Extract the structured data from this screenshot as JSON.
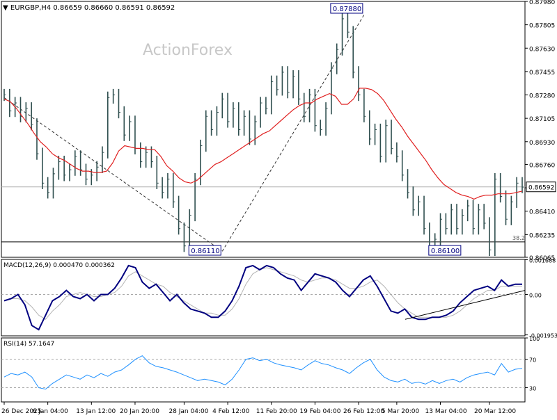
{
  "chart_data": [
    {
      "type": "line",
      "panel": "price",
      "symbol_header": "EURGBP,H4",
      "ohlc_header": "0.86659 0.86660 0.86591 0.86592",
      "watermark": "ActionForex",
      "ylim": [
        0.86065,
        0.8798
      ],
      "y_ticks": [
        "0.87980",
        "0.87805",
        "0.87630",
        "0.87455",
        "0.87280",
        "0.87105",
        "0.86930",
        "0.86760",
        "0.86585",
        "0.86410",
        "0.86235",
        "0.86065"
      ],
      "current_price_label": "0.86592",
      "current_price": 0.86592,
      "fib_level_label": "38.2",
      "fib_level": 0.8618,
      "swing_labels": [
        {
          "text": "0.86110",
          "x": "4 Feb 00:00",
          "y": 0.8611
        },
        {
          "text": "0.87880",
          "x": "26 Feb 08:00",
          "y": 0.8788
        },
        {
          "text": "0.86100",
          "x": "17 Mar 00:00",
          "y": 0.861
        }
      ],
      "trend_lines": [
        {
          "style": "dashed",
          "points": [
            [
              "26 Dec 2025",
              0.8726
            ],
            [
              "4 Feb 00:00",
              0.8611
            ]
          ]
        },
        {
          "style": "dashed",
          "points": [
            [
              "4 Feb 00:00",
              0.8611
            ],
            [
              "26 Feb 08:00",
              0.8788
            ]
          ]
        }
      ],
      "series": [
        {
          "style": "bars",
          "color": "#2f4f4f",
          "values": [
            0.8728,
            0.8716,
            0.8722,
            0.8712,
            0.8718,
            0.8706,
            0.8684,
            0.8662,
            0.8655,
            0.8669,
            0.8678,
            0.8668,
            0.8672,
            0.8682,
            0.8672,
            0.8665,
            0.8668,
            0.8674,
            0.8685,
            0.8726,
            0.8728,
            0.8715,
            0.8698,
            0.8708,
            0.8688,
            0.8678,
            0.8685,
            0.8678,
            0.8662,
            0.8655,
            0.8665,
            0.8648,
            0.8628,
            0.8615,
            0.8638,
            0.8665,
            0.869,
            0.8712,
            0.8702,
            0.8715,
            0.8725,
            0.8708,
            0.8718,
            0.8702,
            0.8712,
            0.8695,
            0.8708,
            0.8722,
            0.8718,
            0.8738,
            0.8732,
            0.8745,
            0.873,
            0.8742,
            0.8725,
            0.8712,
            0.8728,
            0.8705,
            0.8702,
            0.8718,
            0.8748,
            0.8762,
            0.8785,
            0.8775,
            0.8745,
            0.8728,
            0.8712,
            0.8695,
            0.8702,
            0.8682,
            0.8705,
            0.8688,
            0.8682,
            0.8668,
            0.8655,
            0.8642,
            0.8648,
            0.8628,
            0.8618,
            0.862,
            0.8635,
            0.8628,
            0.8642,
            0.8628,
            0.8638,
            0.8645,
            0.8628,
            0.8642,
            0.8632,
            0.8612,
            0.8665,
            0.8652,
            0.8635,
            0.8648,
            0.8662,
            0.8659
          ]
        },
        {
          "style": "line",
          "color": "#e02020",
          "values": [
            0.8725,
            0.8723,
            0.8718,
            0.8712,
            0.8706,
            0.8699,
            0.8693,
            0.8689,
            0.8684,
            0.8681,
            0.8679,
            0.8676,
            0.8673,
            0.8671,
            0.8671,
            0.867,
            0.867,
            0.8671,
            0.8677,
            0.8686,
            0.869,
            0.8689,
            0.8688,
            0.8688,
            0.8687,
            0.8687,
            0.8682,
            0.8675,
            0.8671,
            0.8666,
            0.8663,
            0.8662,
            0.8664,
            0.8668,
            0.8672,
            0.8676,
            0.8678,
            0.8681,
            0.8684,
            0.8687,
            0.869,
            0.8693,
            0.8696,
            0.8699,
            0.8701,
            0.8705,
            0.8709,
            0.8713,
            0.8717,
            0.872,
            0.8722,
            0.8722,
            0.8725,
            0.8727,
            0.8729,
            0.8727,
            0.8721,
            0.8721,
            0.8725,
            0.8733,
            0.8733,
            0.8732,
            0.8729,
            0.8724,
            0.8717,
            0.871,
            0.8704,
            0.8697,
            0.8691,
            0.8685,
            0.8679,
            0.8672,
            0.8666,
            0.8661,
            0.8658,
            0.8655,
            0.8653,
            0.8652,
            0.865,
            0.8652,
            0.8653,
            0.8653,
            0.8654,
            0.8654,
            0.8654,
            0.8655,
            0.8656
          ]
        }
      ]
    },
    {
      "type": "line",
      "panel": "macd",
      "header": "MACD(12,26,9) 0.000470 0.000362",
      "ylim": [
        -0.002,
        0.0017
      ],
      "y_ticks": [
        "0.001688",
        "0.00",
        "-0.001953"
      ],
      "series": [
        {
          "style": "line",
          "color": "#000080",
          "values": [
            -0.0003,
            -0.0002,
            0.0,
            -0.0005,
            -0.0015,
            -0.0017,
            -0.001,
            -0.0003,
            -0.0001,
            0.0002,
            -0.0001,
            -0.0002,
            0.0,
            -0.0003,
            0.0,
            0.0,
            0.0003,
            0.0008,
            0.0014,
            0.0013,
            0.0006,
            0.0003,
            0.0005,
            0.0001,
            -0.0003,
            0.0,
            -0.0004,
            -0.0007,
            -0.0008,
            -0.0009,
            -0.0011,
            -0.0011,
            -0.0008,
            -0.0003,
            0.0004,
            0.0013,
            0.0014,
            0.0012,
            0.0014,
            0.0013,
            0.001,
            0.0008,
            0.0007,
            0.0002,
            0.0006,
            0.001,
            0.0009,
            0.0008,
            0.0006,
            0.0002,
            -0.0001,
            0.0003,
            0.0007,
            0.0009,
            0.0004,
            -0.0002,
            -0.0008,
            -0.0009,
            -0.0007,
            -0.0011,
            -0.0012,
            -0.0012,
            -0.0011,
            -0.0011,
            -0.001,
            -0.0008,
            -0.0004,
            -0.0001,
            0.0002,
            0.0003,
            0.0004,
            0.0002,
            0.0007,
            0.0004,
            0.0005,
            0.0005
          ]
        },
        {
          "style": "line",
          "color": "#b4b4b4",
          "values": [
            -0.0003,
            -0.0002,
            -0.0002,
            -0.0003,
            -0.0006,
            -0.001,
            -0.0012,
            -0.0008,
            -0.0005,
            -0.0001,
            0.0,
            0.0001,
            0.0,
            -0.0001,
            -0.0001,
            0.0,
            0.0001,
            0.0004,
            0.0009,
            0.0011,
            0.0009,
            0.0007,
            0.0005,
            0.0004,
            0.0001,
            -0.0001,
            -0.0003,
            -0.0005,
            -0.0007,
            -0.0009,
            -0.0009,
            -0.001,
            -0.001,
            -0.0007,
            -0.0002,
            0.0005,
            0.001,
            0.0012,
            0.0013,
            0.0012,
            0.0011,
            0.001,
            0.0009,
            0.0007,
            0.0006,
            0.0007,
            0.0008,
            0.0008,
            0.0007,
            0.0005,
            0.0003,
            0.0003,
            0.0004,
            0.0006,
            0.0007,
            0.0004,
            0.0,
            -0.0004,
            -0.0007,
            -0.0009,
            -0.0011,
            -0.0011,
            -0.0011,
            -0.0011,
            -0.0011,
            -0.001,
            -0.0008,
            -0.0005,
            -0.0002,
            0.0,
            0.0002,
            0.0002,
            0.0004,
            0.0004,
            0.0004,
            0.0004
          ]
        }
      ],
      "trend_lines": [
        {
          "style": "solid",
          "points": [
            [
              "5 Mar 20:00",
              -0.0012
            ],
            [
              "20 Mar 12:00",
              0.0002
            ]
          ]
        }
      ]
    },
    {
      "type": "line",
      "panel": "rsi",
      "header": "RSI(14) 57.1647",
      "ylim": [
        10,
        100
      ],
      "y_ticks": [
        "100",
        "70",
        "30"
      ],
      "series": [
        {
          "style": "line",
          "color": "#1e90ff",
          "values": [
            45,
            50,
            48,
            52,
            45,
            30,
            28,
            36,
            42,
            48,
            45,
            42,
            48,
            44,
            50,
            46,
            52,
            55,
            62,
            70,
            75,
            65,
            60,
            58,
            55,
            52,
            48,
            44,
            40,
            42,
            40,
            38,
            34,
            42,
            55,
            70,
            72,
            68,
            70,
            65,
            62,
            60,
            58,
            55,
            62,
            68,
            64,
            62,
            58,
            55,
            50,
            58,
            65,
            70,
            55,
            45,
            40,
            38,
            42,
            36,
            38,
            35,
            40,
            36,
            40,
            42,
            38,
            44,
            48,
            50,
            52,
            48,
            64,
            52,
            56,
            57.1647
          ]
        }
      ]
    }
  ],
  "x_axis": {
    "ticks": [
      "26 Dec 2025",
      "6 Jan 04:00",
      "13 Jan 12:00",
      "20 Jan 20:00",
      "28 Jan 04:00",
      "4 Feb 12:00",
      "11 Feb 20:00",
      "19 Feb 04:00",
      "26 Feb 12:00",
      "5 Mar 20:00",
      "13 Mar 04:00",
      "20 Mar 12:00"
    ]
  },
  "colors": {
    "bars": "#2f4f4f",
    "moving_average": "#e02020",
    "macd_line": "#000080",
    "signal_line": "#b4b4b4",
    "rsi_line": "#1e90ff",
    "label_border": "#000080",
    "watermark": "#c8c8c8"
  }
}
